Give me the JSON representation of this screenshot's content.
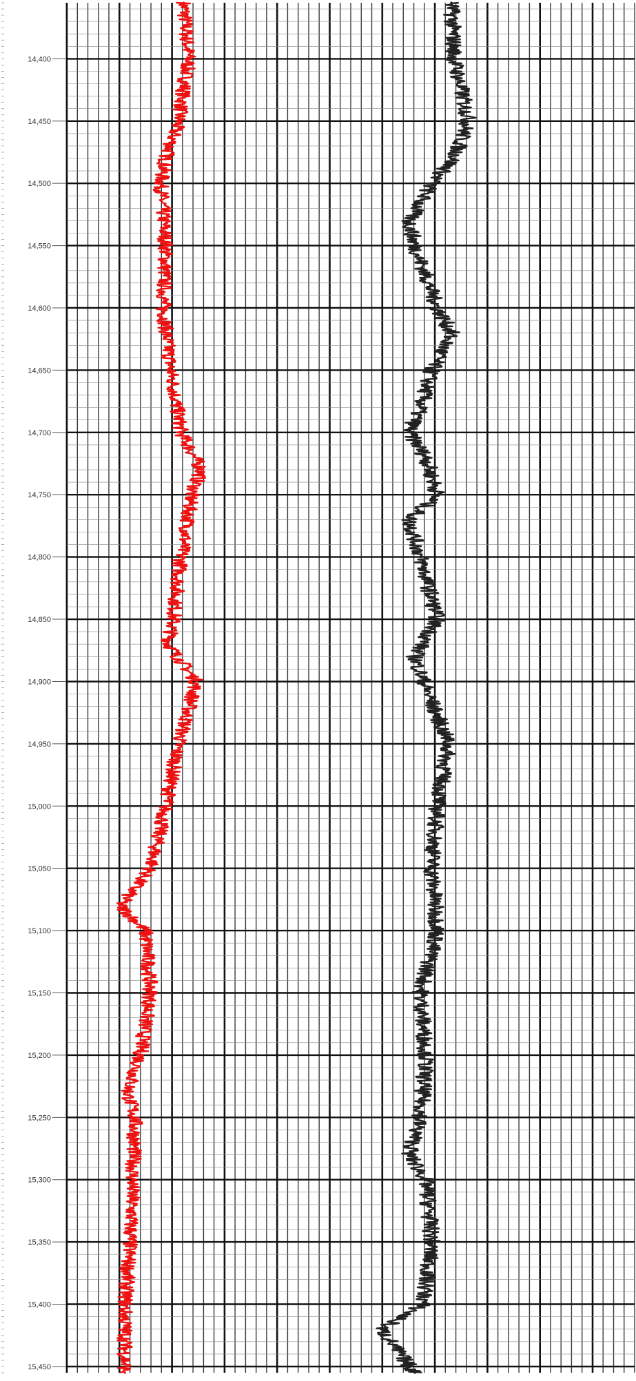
{
  "chart_data": [
    {
      "type": "line",
      "depth_axis": {
        "ticks": [
          "14,400",
          "14,450",
          "14,500",
          "14,550",
          "14,600",
          "14,650",
          "14,700",
          "14,750",
          "14,800",
          "14,850",
          "14,900",
          "14,950",
          "15,000",
          "15,050",
          "15,100",
          "15,150",
          "15,200",
          "15,250",
          "15,300",
          "15,350",
          "15,400",
          "15,450"
        ],
        "range": [
          14355,
          15455
        ],
        "inverted": true
      },
      "track": "left",
      "series": [
        {
          "color": "#ee1111",
          "depth": [
            14355,
            14400,
            14450,
            14480,
            14500,
            14550,
            14600,
            14650,
            14700,
            14730,
            14750,
            14780,
            14800,
            14850,
            14870,
            14900,
            14930,
            14950,
            15000,
            15050,
            15080,
            15100,
            15150,
            15200,
            15230,
            15250,
            15300,
            15350,
            15400,
            15455
          ],
          "value": [
            0.45,
            0.47,
            0.43,
            0.38,
            0.36,
            0.38,
            0.37,
            0.4,
            0.44,
            0.52,
            0.48,
            0.46,
            0.44,
            0.41,
            0.39,
            0.5,
            0.46,
            0.43,
            0.38,
            0.32,
            0.2,
            0.3,
            0.32,
            0.28,
            0.23,
            0.26,
            0.25,
            0.24,
            0.22,
            0.22
          ]
        }
      ],
      "grid": true
    },
    {
      "type": "line",
      "track": "right",
      "series": [
        {
          "color": "#222222",
          "depth": [
            14355,
            14400,
            14450,
            14480,
            14500,
            14530,
            14550,
            14600,
            14620,
            14650,
            14680,
            14700,
            14720,
            14750,
            14770,
            14800,
            14850,
            14880,
            14900,
            14950,
            15000,
            15050,
            15100,
            15150,
            15200,
            15250,
            15280,
            15300,
            15350,
            15400,
            15420,
            15455
          ],
          "value": [
            0.35,
            0.36,
            0.41,
            0.36,
            0.28,
            0.2,
            0.22,
            0.3,
            0.35,
            0.28,
            0.24,
            0.2,
            0.26,
            0.3,
            0.2,
            0.24,
            0.3,
            0.22,
            0.25,
            0.34,
            0.3,
            0.28,
            0.3,
            0.24,
            0.26,
            0.24,
            0.2,
            0.26,
            0.28,
            0.25,
            0.1,
            0.22
          ]
        }
      ],
      "grid": true
    }
  ],
  "colors": {
    "background": "#ffffff",
    "grid": "#3a3a3a",
    "grid_heavy": "#111111"
  }
}
